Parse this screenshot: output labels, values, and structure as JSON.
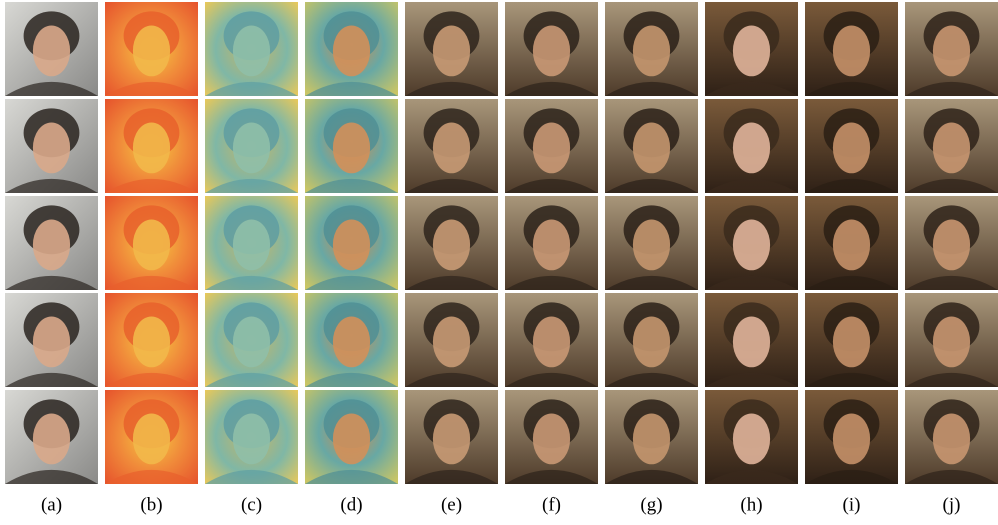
{
  "figure": {
    "column_labels": [
      "(a)",
      "(b)",
      "(c)",
      "(d)",
      "(e)",
      "(f)",
      "(g)",
      "(h)",
      "(i)",
      "(j)"
    ]
  }
}
